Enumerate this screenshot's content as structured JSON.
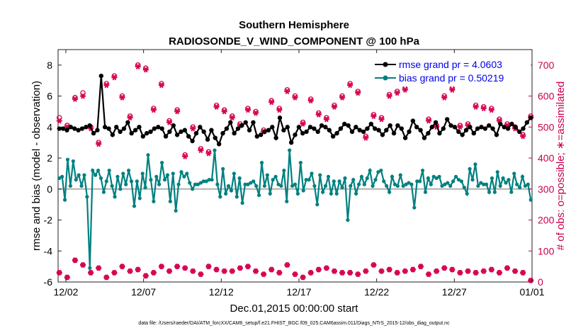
{
  "chart_data": {
    "type": "line",
    "title": "Southern Hemisphere",
    "subtitle": "RADIOSONDE_V_WIND_COMPONENT @ 100 hPa",
    "xlabel": "Dec.01,2015 00:00:00 start",
    "ylabel": "rmse and bias (model - observation)",
    "y2label": "# of obs: o=possible; ∗=assimilated",
    "footnote": "data file: /Users/raeder/DAI/ATM_forcXX/CAM6_setup/f.e21.FHIST_BGC.f09_025.CAM6assim.011/Diags_NTrS_2015-12/obs_diag_output.nc",
    "xlim": [
      0.5,
      31.0
    ],
    "ylim": [
      -6,
      9
    ],
    "y2lim": [
      0,
      750
    ],
    "x_ticks": [
      2,
      7,
      12,
      17,
      22,
      27,
      32
    ],
    "x_tick_labels": [
      "12/02",
      "12/07",
      "12/12",
      "12/17",
      "12/22",
      "12/27",
      "01/01"
    ],
    "y_ticks": [
      -6,
      -4,
      -2,
      0,
      2,
      4,
      6,
      8
    ],
    "y_tick_labels": [
      "-6",
      "-4",
      "-2",
      "0",
      "2",
      "4",
      "6",
      "8"
    ],
    "y2_ticks": [
      0,
      100,
      200,
      300,
      400,
      500,
      600,
      700
    ],
    "y2_tick_labels": [
      "0",
      "100",
      "200",
      "300",
      "400",
      "500",
      "600",
      "700"
    ],
    "colors": {
      "rmse": "#000000",
      "bias": "#008080",
      "obs": "#d6004f",
      "zero_line": "#b0b0b0",
      "legend_text": "#0000ee",
      "right_axis": "#c8004f"
    },
    "series": [
      {
        "name": "rmse grand pr = 4.0603",
        "axis": "left",
        "values": [
          3.9,
          3.9,
          3.8,
          4.0,
          3.9,
          3.8,
          3.9,
          4.0,
          4.1,
          3.6,
          3.8,
          7.3,
          4.0,
          3.9,
          3.5,
          4.0,
          3.7,
          3.9,
          4.3,
          3.6,
          3.8,
          4.0,
          3.4,
          3.6,
          3.7,
          3.9,
          4.0,
          3.9,
          3.4,
          3.7,
          4.1,
          3.5,
          3.7,
          3.8,
          3.4,
          3.1,
          3.6,
          4.0,
          3.7,
          3.2,
          3.8,
          3.3,
          2.9,
          3.6,
          3.9,
          4.3,
          3.6,
          3.9,
          4.1,
          4.3,
          3.8,
          4.3,
          3.4,
          3.5,
          3.7,
          3.8,
          4.0,
          3.3,
          4.6,
          3.8,
          4.0,
          3.0,
          3.5,
          4.0,
          3.6,
          3.7,
          4.0,
          3.9,
          3.7,
          4.1,
          4.0,
          3.8,
          3.4,
          3.6,
          3.9,
          4.2,
          4.1,
          3.7,
          4.0,
          3.8,
          3.7,
          3.9,
          4.2,
          3.9,
          3.8,
          3.5,
          3.8,
          4.1,
          3.6,
          4.1,
          3.9,
          3.3,
          3.7,
          4.4,
          4.0,
          3.8,
          3.3,
          3.6,
          4.0,
          4.3,
          3.6,
          3.9,
          4.5,
          4.1,
          4.0,
          3.7,
          3.5,
          3.8,
          4.0,
          3.6,
          3.9,
          4.0,
          3.9,
          4.1,
          3.9,
          3.5,
          4.2,
          4.0,
          3.9,
          4.2,
          4.0,
          3.7,
          3.9,
          4.3,
          4.6
        ],
        "pattern_note": "values for rmse"
      },
      {
        "name": "bias grand pr = 0.50219",
        "axis": "left",
        "values": [
          0.7,
          0.8,
          -0.7,
          1.9,
          0.2,
          1.8,
          0.6,
          0.9,
          0.2,
          0.9,
          -0.5,
          -5.1,
          1.2,
          0.9,
          1.2,
          0.7,
          -0.2,
          0.5,
          1.2,
          0.2,
          -0.5,
          0.8,
          0.0,
          1.0,
          0.3,
          1.2,
          0.5,
          -1.1,
          0.5,
          -0.6,
          1.0,
          0.1,
          2.2,
          0.6,
          -0.8,
          0.8,
          0.3,
          1.7,
          0.6,
          0.9,
          -0.8,
          1.0,
          -1.4,
          0.3,
          1.1,
          0.8,
          1.0,
          0.4,
          0.0,
          0.3,
          0.3,
          0.4,
          0.5,
          0.5,
          0.6,
          0.6,
          2.5,
          0.3,
          -0.5,
          1.3,
          -0.3,
          0.2,
          -0.1,
          1.0,
          -0.5,
          0.7,
          -0.9,
          0.3,
          0.3,
          0.4,
          0.5,
          0.2,
          -0.4,
          1.7,
          0.2,
          0.9,
          -0.3,
          0.6,
          0.8,
          0.3,
          0.2,
          1.2,
          -0.8,
          2.5,
          0.2,
          0.3,
          -0.3,
          1.7,
          -0.1,
          0.6,
          0.6,
          1.0,
          0.2,
          -1.0,
          0.9,
          -0.2,
          0.2,
          0.8,
          -0.3,
          0.5,
          -0.3,
          0.5,
          0.1,
          0.7,
          -2.0,
          0.2,
          0.6,
          -0.3,
          0.3,
          0.8,
          0.3,
          0.7,
          1.2,
          0.2,
          0.6,
          1.1,
          1.2,
          0.5,
          0.2,
          -0.2,
          0.8,
          0.3,
          0.2,
          0.9,
          0.2,
          0.3,
          0.4,
          0.3,
          -1.2,
          0.5,
          0.5,
          1.2,
          -0.2,
          0.7,
          0.3,
          0.8,
          0.7,
          0.8,
          0.2,
          0.3,
          0.4,
          0.2,
          0.5,
          0.8,
          0.6,
          0.5,
          0.1,
          -0.3,
          1.3,
          0.6,
          1.6,
          0.2,
          0.4,
          0.3,
          0.3,
          -0.2,
          0.7,
          -0.2,
          1.1,
          0.2,
          0.7,
          0.4,
          0.6,
          -0.2,
          1.0,
          0.3,
          0.1,
          0.8,
          0.2,
          0.3,
          -0.7
        ]
      }
    ],
    "obs_counts": {
      "possible_upper": [
        530,
        505,
        595,
        610,
        500,
        450,
        640,
        665,
        600,
        535,
        700,
        690,
        560,
        640,
        520,
        555,
        410,
        500,
        430,
        420,
        570,
        555,
        535,
        510,
        560,
        550,
        490,
        585,
        560,
        620,
        600,
        515,
        590,
        545,
        530,
        570,
        600,
        640,
        615,
        470,
        540,
        530,
        605,
        615,
        625,
        690,
        645,
        525,
        505,
        600,
        625,
        505,
        510,
        570,
        565,
        560,
        525,
        510,
        500,
        475,
        535
      ],
      "possible_lower": [
        30,
        15,
        70,
        55,
        30,
        45,
        15,
        30,
        50,
        35,
        40,
        20,
        30,
        50,
        35,
        50,
        45,
        35,
        25,
        50,
        40,
        35,
        35,
        45,
        50,
        35,
        25,
        40,
        30,
        55,
        25,
        15,
        30,
        40,
        45,
        35,
        30,
        30,
        25,
        35,
        55,
        35,
        40,
        30,
        35,
        40,
        50,
        25,
        35,
        45,
        40,
        30,
        35,
        30,
        35,
        40,
        30,
        45,
        35,
        30,
        5
      ],
      "assimilated_upper": [
        520,
        500,
        590,
        600,
        495,
        445,
        635,
        660,
        595,
        530,
        695,
        685,
        555,
        635,
        515,
        550,
        405,
        495,
        425,
        415,
        565,
        550,
        530,
        505,
        555,
        545,
        485,
        580,
        555,
        615,
        595,
        510,
        585,
        540,
        525,
        565,
        595,
        635,
        610,
        465,
        535,
        525,
        600,
        610,
        620,
        685,
        640,
        520,
        500,
        595,
        620,
        500,
        505,
        565,
        560,
        555,
        520,
        505,
        495,
        470,
        530
      ],
      "assimilated_lower": [
        30,
        15,
        70,
        55,
        30,
        45,
        15,
        30,
        50,
        35,
        40,
        20,
        30,
        50,
        35,
        50,
        45,
        35,
        25,
        50,
        40,
        35,
        35,
        45,
        50,
        35,
        25,
        40,
        30,
        55,
        25,
        15,
        30,
        40,
        45,
        35,
        30,
        30,
        25,
        35,
        55,
        35,
        40,
        30,
        35,
        40,
        50,
        25,
        35,
        45,
        40,
        30,
        35,
        30,
        35,
        40,
        30,
        45,
        35,
        30,
        5
      ]
    },
    "legend": {
      "placement": "top-right",
      "entries": [
        "rmse grand pr = 4.0603",
        "bias grand pr = 0.50219"
      ]
    },
    "grid": false
  }
}
